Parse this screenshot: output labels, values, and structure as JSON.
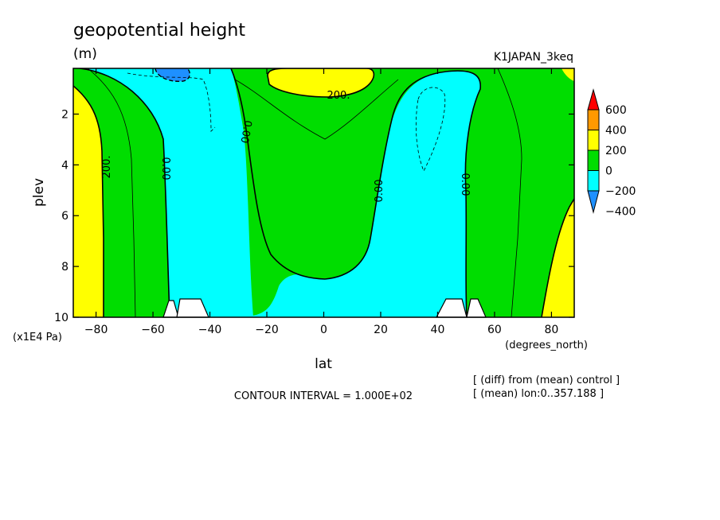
{
  "chart_data": {
    "type": "heatmap",
    "title": "geopotential height",
    "units": "(m)",
    "run_label": "K1JAPAN_3keq",
    "xlabel": "lat",
    "x_units": "(degrees_north)",
    "ylabel": "plev",
    "y_units": "(x1E4 Pa)",
    "xlim": [
      -88,
      88
    ],
    "ylim": [
      10,
      0.2
    ],
    "xticks": [
      -80,
      -60,
      -40,
      -20,
      0,
      20,
      40,
      60,
      80
    ],
    "xtick_labels": [
      "−80",
      "−60",
      "−40",
      "−20",
      "0",
      "20",
      "40",
      "60",
      "80"
    ],
    "yticks": [
      2,
      4,
      6,
      8,
      10
    ],
    "ytick_labels": [
      "2",
      "4",
      "6",
      "8",
      "10"
    ],
    "contour_labels": [
      "200.",
      "0.00",
      "0.00",
      "200.",
      "0.00",
      "0.00"
    ],
    "legend": {
      "levels": [
        "600",
        "400",
        "200",
        "0",
        "−200",
        "−400"
      ],
      "colors": [
        "#ff0000",
        "#ff9900",
        "#ffff00",
        "#00dd00",
        "#00ffff",
        "#1e90ff"
      ]
    },
    "footer": {
      "contour_interval": "CONTOUR INTERVAL = 1.000E+02",
      "diff_note": "[ (diff) from (mean) control ]",
      "mean_note": "[ (mean) lon:0..357.188 ]"
    },
    "regions": [
      {
        "name": "yellow-left",
        "class": "200 to 400",
        "lat_range": [
          -88,
          -78
        ],
        "plev_range": [
          1,
          10
        ]
      },
      {
        "name": "green-left",
        "class": "0 to 200",
        "lat_range": [
          -80,
          -55
        ],
        "plev_range": [
          0.2,
          10
        ]
      },
      {
        "name": "cyan-south",
        "class": "-200 to 0",
        "lat_range": [
          -55,
          -30
        ],
        "plev_range": [
          0.2,
          10
        ]
      },
      {
        "name": "blue-minimum",
        "class": "-400 to -200",
        "lat_range": [
          -66,
          -53
        ],
        "plev_range": [
          0.2,
          0.6
        ]
      },
      {
        "name": "green-centre",
        "class": "0 to 200",
        "lat_range": [
          -28,
          20
        ],
        "plev_range": [
          0.2,
          8.4
        ]
      },
      {
        "name": "yellow-top",
        "class": "200 to 400",
        "lat_range": [
          -20,
          18
        ],
        "plev_range": [
          0.2,
          1.2
        ]
      },
      {
        "name": "cyan-north",
        "class": "-200 to 0",
        "lat_range": [
          25,
          52
        ],
        "plev_range": [
          0.2,
          10
        ]
      },
      {
        "name": "green-right",
        "class": "0 to 200",
        "lat_range": [
          49,
          80
        ],
        "plev_range": [
          0.2,
          10
        ]
      },
      {
        "name": "yellow-right",
        "class": "200 to 400",
        "lat_range": [
          77,
          88
        ],
        "plev_range": [
          5,
          10
        ]
      }
    ]
  }
}
